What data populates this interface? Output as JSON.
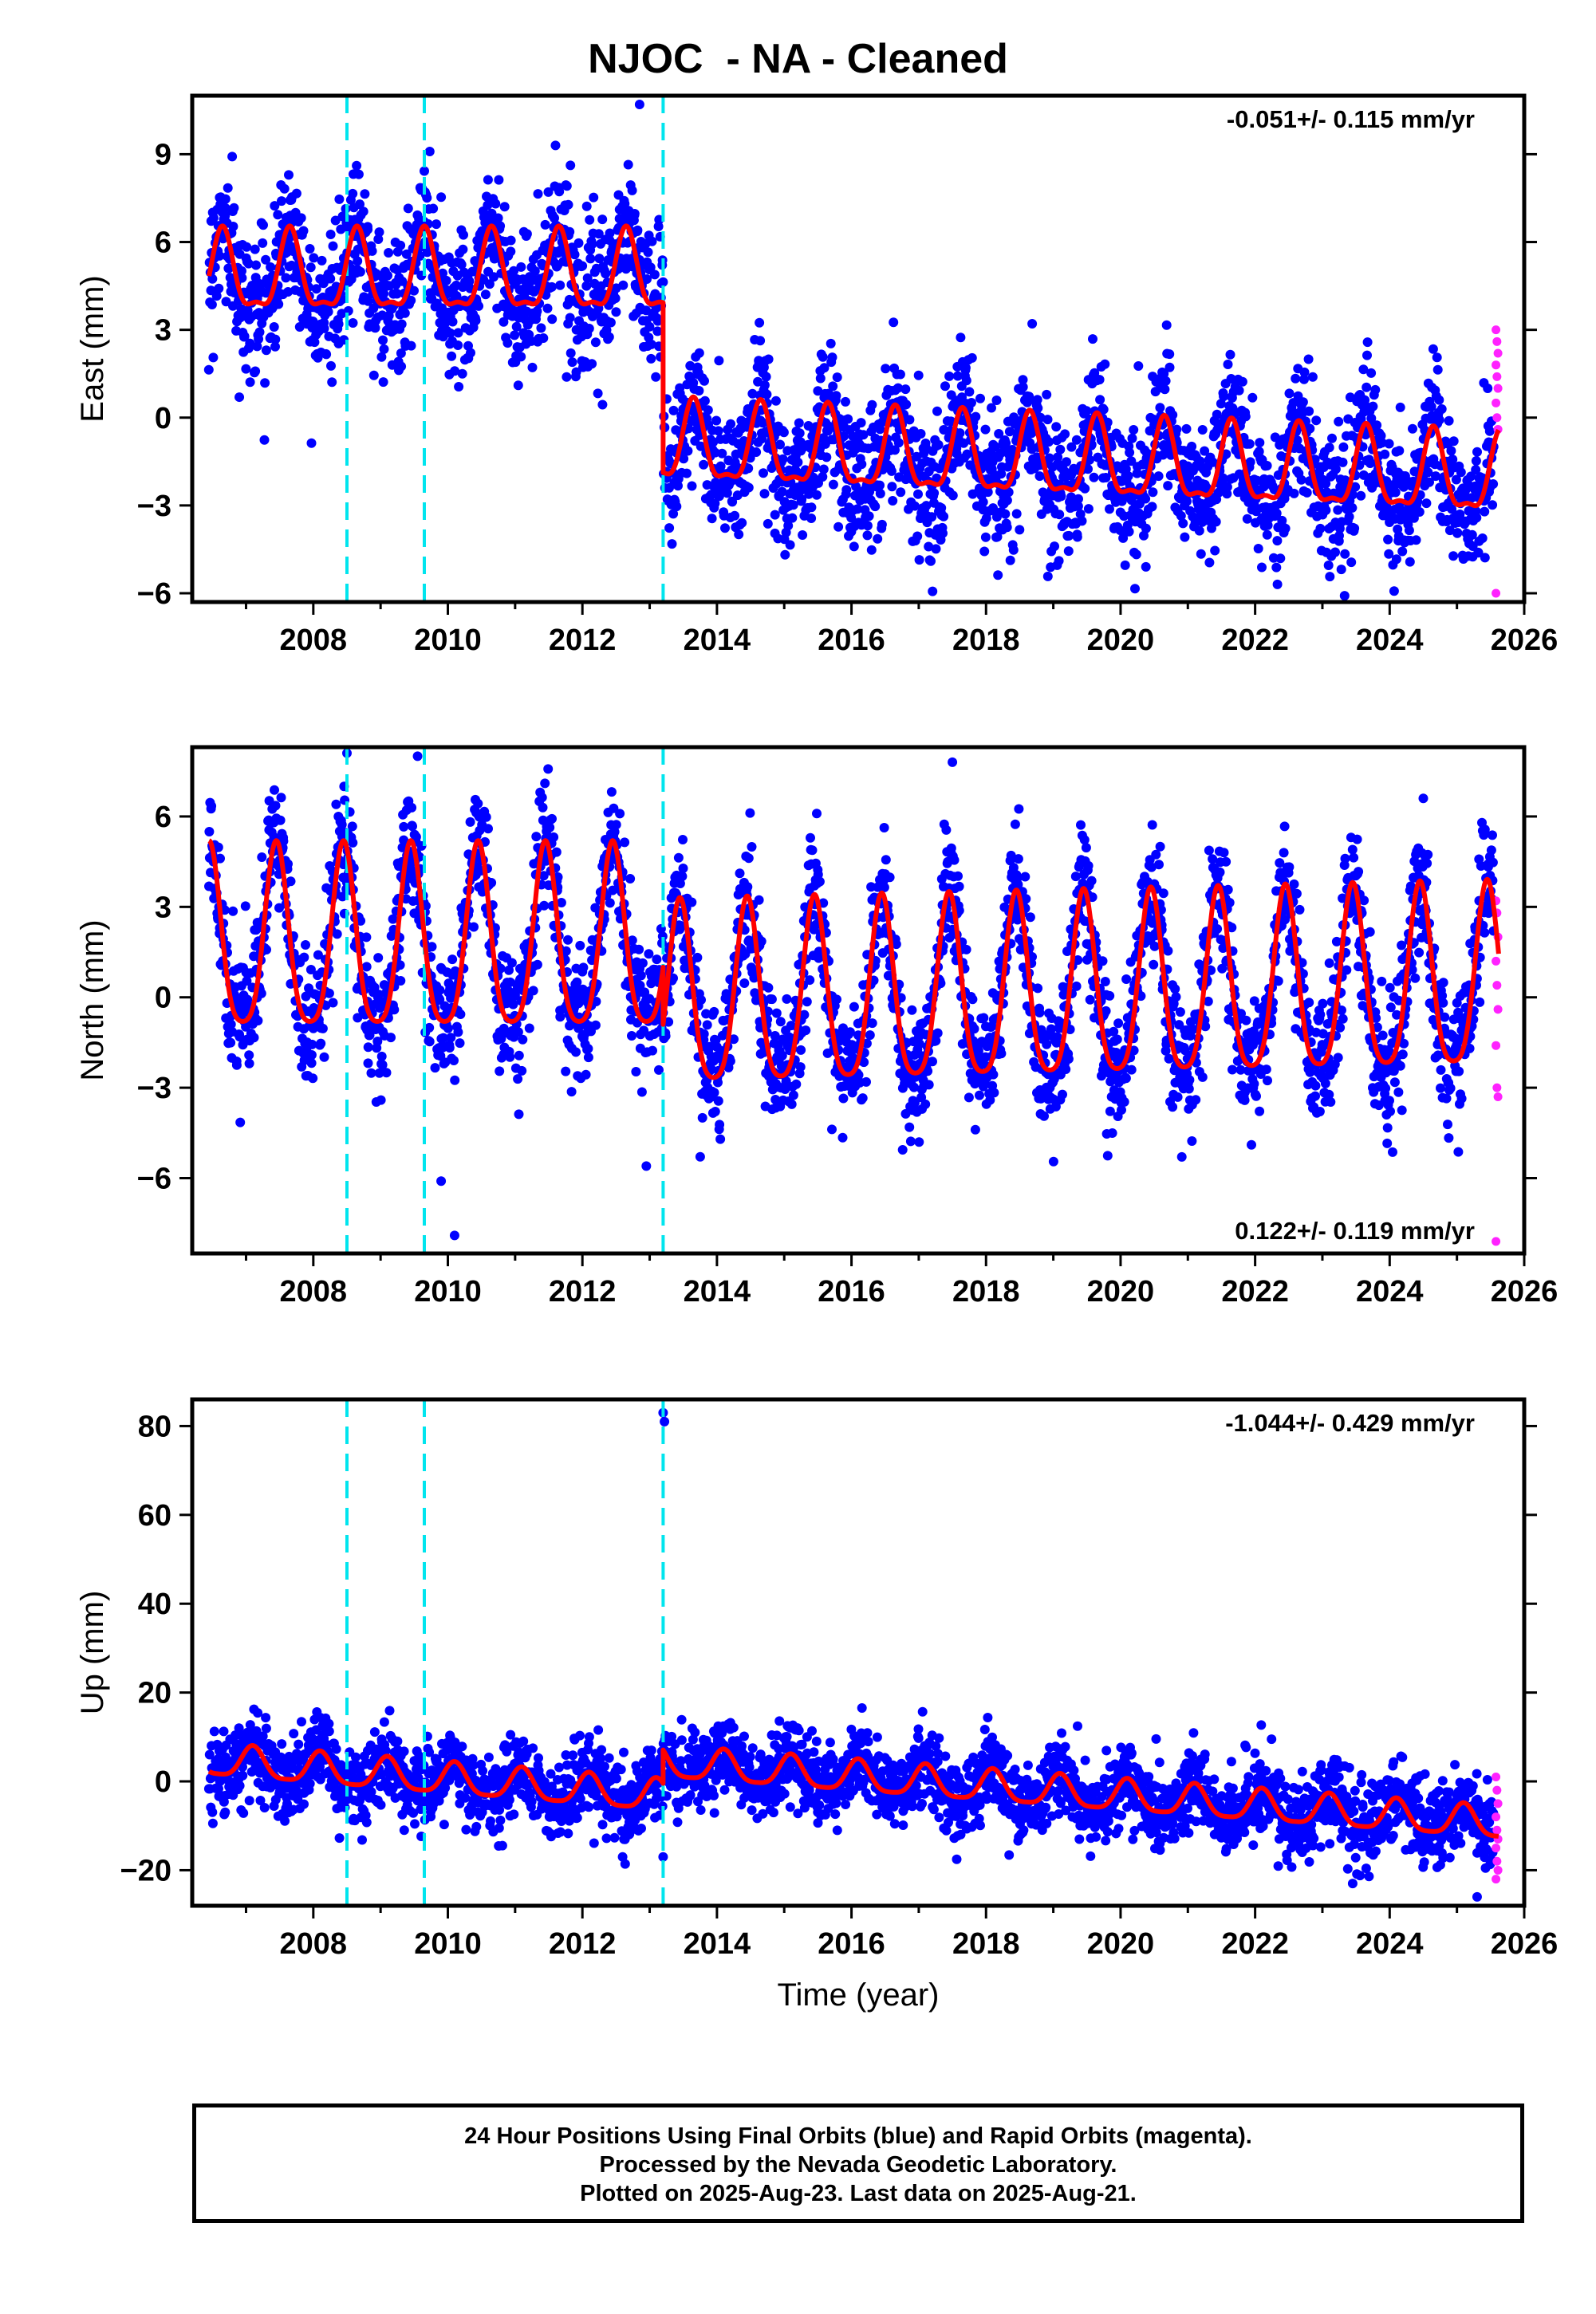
{
  "title": "NJOC  - NA - Cleaned",
  "colors": {
    "final_points": "#0000ff",
    "rapid_points": "#ff22ff",
    "model": "#ff0000",
    "offsets": "#00e5ee",
    "frame": "#000000"
  },
  "chart_data": [
    {
      "type": "scatter",
      "name": "east",
      "ylabel": "East (mm)",
      "xlabel": "",
      "xlim": [
        2006.2,
        2026.0
      ],
      "ylim": [
        -6.3,
        11.0
      ],
      "xticks": [
        2008,
        2010,
        2012,
        2014,
        2016,
        2018,
        2020,
        2022,
        2024,
        2026
      ],
      "yticks": [
        -6,
        -3,
        0,
        3,
        6,
        9
      ],
      "ytick_labels": [
        "−6",
        "−3",
        "0",
        "3",
        "6",
        "9"
      ],
      "rate": "-0.051+/- 0.115 mm/yr",
      "rate_position": "top-right",
      "offsets": [
        2008.5,
        2009.65,
        2013.2
      ],
      "model": {
        "offset_epoch": 2013.2,
        "pre_mean": 4.8,
        "post_mean": -1.0,
        "annual_amplitude": 1.3,
        "annual_peak": 0.65,
        "semiannual_amplitude": 0.45,
        "pre_trend": 0.0,
        "post_trend": -0.09
      },
      "scatter_sd": 1.15,
      "outliers": [
        [
          2012.85,
          10.7
        ],
        [
          2011.6,
          9.3
        ],
        [
          2006.9,
          0.7
        ]
      ],
      "rapid_values": [
        3.0,
        2.6,
        2.2,
        1.8,
        1.4,
        1.0,
        0.5,
        0.0,
        -0.4,
        -6.0
      ]
    },
    {
      "type": "scatter",
      "name": "north",
      "ylabel": "North (mm)",
      "xlabel": "",
      "xlim": [
        2006.2,
        2026.0
      ],
      "ylim": [
        -8.5,
        8.3
      ],
      "xticks": [
        2008,
        2010,
        2012,
        2014,
        2016,
        2018,
        2020,
        2022,
        2024,
        2026
      ],
      "yticks": [
        -6,
        -3,
        0,
        3,
        6
      ],
      "ytick_labels": [
        "−6",
        "−3",
        "0",
        "3",
        "6"
      ],
      "rate": "0.122+/- 0.119 mm/yr",
      "rate_position": "bottom-right",
      "offsets": [
        2008.5,
        2009.65,
        2013.2
      ],
      "model": {
        "offset_epoch": 2013.2,
        "pre_mean": 1.6,
        "post_mean": -0.3,
        "annual_amplitude": 3.0,
        "annual_peak": 0.45,
        "semiannual_amplitude": 0.6,
        "pre_trend": 0.0,
        "post_trend": 0.05
      },
      "scatter_sd": 1.05,
      "outliers": [
        [
          2010.1,
          -7.9
        ],
        [
          2009.9,
          -6.1
        ],
        [
          2012.95,
          -5.6
        ],
        [
          2008.5,
          8.1
        ],
        [
          2009.55,
          8.0
        ],
        [
          2017.5,
          7.8
        ],
        [
          2024.5,
          6.6
        ]
      ],
      "rapid_values": [
        3.2,
        2.8,
        2.0,
        1.2,
        0.4,
        -0.4,
        -1.6,
        -3.0,
        -3.3,
        -8.1
      ]
    },
    {
      "type": "scatter",
      "name": "up",
      "ylabel": "Up (mm)",
      "xlabel": "Time (year)",
      "xlim": [
        2006.2,
        2026.0
      ],
      "ylim": [
        -28,
        86
      ],
      "xticks": [
        2008,
        2010,
        2012,
        2014,
        2016,
        2018,
        2020,
        2022,
        2024,
        2026
      ],
      "yticks": [
        -20,
        0,
        20,
        40,
        60,
        80
      ],
      "ytick_labels": [
        "−20",
        "0",
        "20",
        "40",
        "60",
        "80"
      ],
      "rate": "-1.044+/- 0.429 mm/yr",
      "rate_position": "top-right",
      "offsets": [
        2008.5,
        2009.65,
        2013.2
      ],
      "model": {
        "offset_epoch": 2013.2,
        "pre_mean": 4.5,
        "post_mean": 4.0,
        "annual_amplitude": 3.5,
        "annual_peak": 0.1,
        "semiannual_amplitude": 0.8,
        "pre_trend": -1.2,
        "post_trend": -1.1
      },
      "scatter_sd": 4.3,
      "outliers": [
        [
          2013.2,
          83.0
        ],
        [
          2013.22,
          81.0
        ],
        [
          2023.45,
          -23.0
        ],
        [
          2025.3,
          -26.0
        ],
        [
          2013.2,
          -17.0
        ]
      ],
      "rapid_values": [
        1.0,
        -2.0,
        -5.0,
        -8.0,
        -11.0,
        -13.0,
        -15.0,
        -18.0,
        -20.0,
        -22.0
      ]
    }
  ],
  "footer": {
    "line1": "24 Hour Positions Using Final Orbits (blue) and Rapid Orbits (magenta).",
    "line2": "Processed by the Nevada Geodetic Laboratory.",
    "line3": "Plotted on 2025-Aug-23. Last data on 2025-Aug-21."
  }
}
